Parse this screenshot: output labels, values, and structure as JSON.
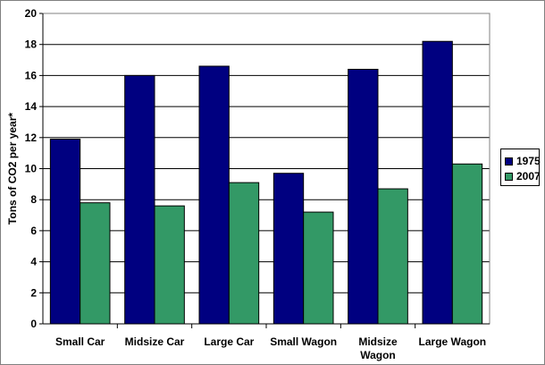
{
  "chart_data": {
    "type": "bar",
    "title": "",
    "xlabel": "",
    "ylabel": "Tons of CO2 per year*",
    "ylim": [
      0,
      20
    ],
    "yticks": [
      0,
      2,
      4,
      6,
      8,
      10,
      12,
      14,
      16,
      18,
      20
    ],
    "grid": true,
    "legend_position": "right",
    "categories": [
      [
        "Small  Car"
      ],
      [
        "Midsize Car"
      ],
      [
        "Large Car"
      ],
      [
        "Small Wagon"
      ],
      [
        "Midsize",
        "Wagon"
      ],
      [
        "Large Wagon"
      ]
    ],
    "series": [
      {
        "name": "1975",
        "color": "#000080",
        "values": [
          11.9,
          16.0,
          16.6,
          9.7,
          16.4,
          18.2
        ]
      },
      {
        "name": "2007",
        "color": "#339966",
        "values": [
          7.8,
          7.6,
          9.1,
          7.2,
          8.7,
          10.3
        ]
      }
    ]
  }
}
